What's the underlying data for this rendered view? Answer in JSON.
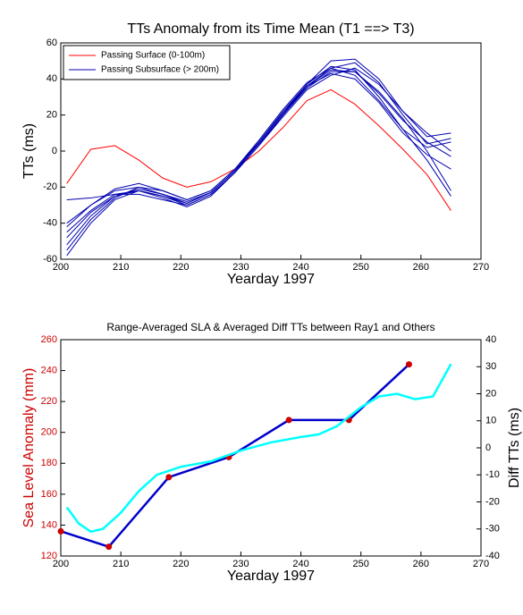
{
  "chart_data": [
    {
      "type": "line",
      "title": "TTs Anomaly from its Time Mean (T1 ==> T3)",
      "xlabel": "Yearday 1997",
      "ylabel": "TTs (ms)",
      "x": [
        201,
        205,
        209,
        213,
        217,
        221,
        225,
        229,
        233,
        237,
        241,
        245,
        249,
        253,
        257,
        261,
        265
      ],
      "series": [
        {
          "name": "Passing Surface (0-100m)",
          "color": "#ff0000",
          "values": [
            -18,
            1,
            3,
            -5,
            -15,
            -20,
            -17,
            -10,
            0,
            13,
            28,
            34,
            26,
            14,
            1,
            -13,
            -33
          ]
        },
        {
          "name": "Passing Subsurface (> 200m)",
          "color": "#0000b0",
          "values": [
            -58,
            -40,
            -27,
            -22,
            -25,
            -30,
            -24,
            -12,
            5,
            22,
            37,
            47,
            45,
            30,
            12,
            2,
            5
          ]
        },
        {
          "color": "#0000b0",
          "values": [
            -52,
            -36,
            -25,
            -21,
            -24,
            -29,
            -23,
            -11,
            4,
            20,
            35,
            44,
            44,
            32,
            17,
            5,
            -3
          ]
        },
        {
          "color": "#0000b0",
          "values": [
            -45,
            -33,
            -24,
            -22,
            -26,
            -31,
            -25,
            -12,
            3,
            19,
            34,
            42,
            46,
            37,
            22,
            8,
            10
          ]
        },
        {
          "color": "#0000b0",
          "values": [
            -40,
            -30,
            -22,
            -20,
            -24,
            -28,
            -23,
            -11,
            4,
            20,
            36,
            46,
            49,
            38,
            20,
            4,
            7
          ]
        },
        {
          "color": "#0000b0",
          "values": [
            -27,
            -26,
            -24,
            -24,
            -27,
            -30,
            -24,
            -12,
            3,
            20,
            36,
            45,
            44,
            33,
            18,
            0,
            -22
          ]
        },
        {
          "color": "#0000b0",
          "values": [
            -55,
            -38,
            -26,
            -20,
            -22,
            -27,
            -22,
            -10,
            6,
            23,
            38,
            46,
            42,
            28,
            12,
            -5,
            -25
          ]
        },
        {
          "color": "#0000b0",
          "values": [
            -48,
            -34,
            -25,
            -22,
            -25,
            -29,
            -23,
            -11,
            5,
            21,
            36,
            43,
            40,
            27,
            10,
            -2,
            -10
          ]
        },
        {
          "color": "#0000b0",
          "values": [
            -42,
            -30,
            -21,
            -18,
            -22,
            -27,
            -22,
            -10,
            5,
            21,
            37,
            50,
            51,
            40,
            22,
            10,
            0
          ]
        }
      ],
      "xlim": [
        200,
        270
      ],
      "xticks": [
        200,
        210,
        220,
        230,
        240,
        250,
        260,
        270
      ],
      "ylim": [
        -60,
        60
      ],
      "yticks": [
        -60,
        -40,
        -20,
        0,
        20,
        40,
        60
      ],
      "legend": "upper left"
    },
    {
      "type": "line",
      "title": "Range-Averaged SLA & Averaged Diff TTs between Ray1 and Others",
      "xlabel": "Yearday 1997",
      "ylabel": "Sea Level Anomaly (mm)",
      "y2label": "Diff TTs (ms)",
      "ylabel_color": "#cc0000",
      "series": [
        {
          "color": "#0000cc",
          "marker_color": "#cc0000",
          "x": [
            200,
            208,
            218,
            228,
            238,
            248,
            258
          ],
          "values": [
            136,
            126,
            171,
            184,
            208,
            208,
            244
          ]
        },
        {
          "color": "#00ffff",
          "axis": "y2",
          "x": [
            201,
            203,
            205,
            207,
            210,
            213,
            216,
            220,
            225,
            230,
            235,
            240,
            243,
            246,
            250,
            253,
            256,
            259,
            262,
            265
          ],
          "values": [
            -22,
            -28,
            -31,
            -30,
            -24,
            -16,
            -10,
            -7,
            -5,
            -1,
            2,
            4,
            5,
            8,
            15,
            19,
            20,
            18,
            19,
            31
          ]
        }
      ],
      "xlim": [
        200,
        270
      ],
      "xticks": [
        200,
        210,
        220,
        230,
        240,
        250,
        260,
        270
      ],
      "ylim": [
        120,
        260
      ],
      "yticks": [
        120,
        140,
        160,
        180,
        200,
        220,
        240,
        260
      ],
      "y2lim": [
        -40,
        40
      ],
      "y2ticks": [
        -40,
        -30,
        -20,
        -10,
        0,
        10,
        20,
        30,
        40
      ]
    }
  ]
}
